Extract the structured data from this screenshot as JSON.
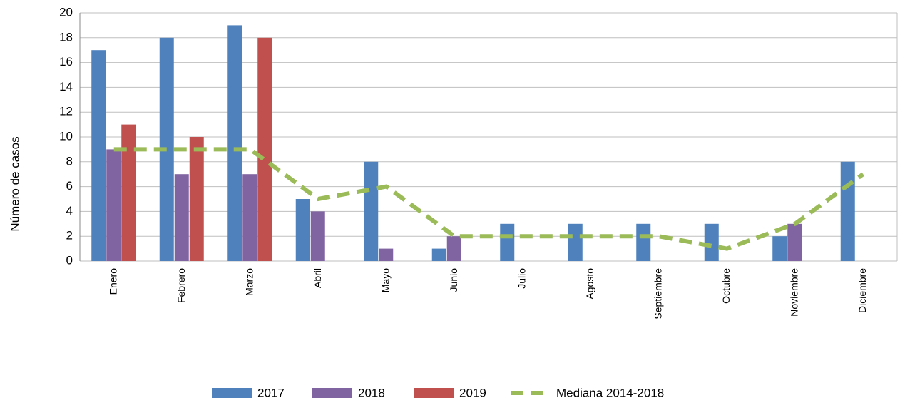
{
  "chart_data": {
    "type": "bar",
    "y_label": "Número de casos",
    "categories": [
      "Enero",
      "Febrero",
      "Marzo",
      "Abril",
      "Mayo",
      "Junio",
      "Julio",
      "Agosto",
      "Septiembre",
      "Octubre",
      "Noviembre",
      "Diciembre"
    ],
    "series": [
      {
        "name": "2017",
        "color": "#4f81bd",
        "values": [
          17,
          18,
          19,
          5,
          8,
          1,
          3,
          3,
          3,
          3,
          2,
          8
        ]
      },
      {
        "name": "2018",
        "color": "#8064a2",
        "values": [
          9,
          7,
          7,
          4,
          1,
          2,
          null,
          null,
          null,
          null,
          3,
          null
        ]
      },
      {
        "name": "2019",
        "color": "#c0504d",
        "values": [
          11,
          10,
          18,
          null,
          null,
          null,
          null,
          null,
          null,
          null,
          null,
          null
        ]
      },
      {
        "name": "Mediana 2014-2018",
        "type": "line",
        "dashed": true,
        "color": "#9bbb59",
        "values": [
          9,
          9,
          9,
          5,
          6,
          2,
          2,
          2,
          2,
          1,
          3,
          7
        ]
      }
    ],
    "ylim": [
      0,
      20
    ],
    "yticks": [
      0,
      2,
      4,
      6,
      8,
      10,
      12,
      14,
      16,
      18,
      20
    ],
    "grid": true,
    "legend": "bottom"
  }
}
